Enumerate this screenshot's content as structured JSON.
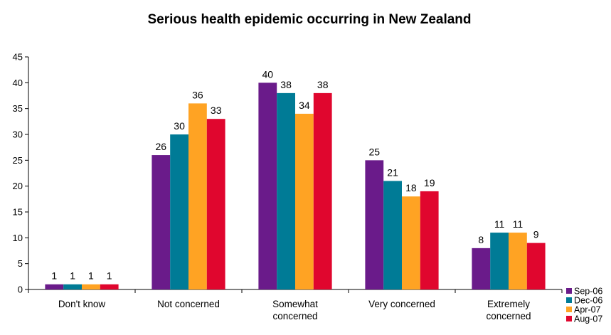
{
  "chart_data": {
    "type": "bar",
    "title": "Serious health epidemic occurring in New Zealand",
    "xlabel": "",
    "ylabel": "",
    "categories": [
      [
        "Don't know"
      ],
      [
        "Not concerned"
      ],
      [
        "Somewhat",
        "concerned"
      ],
      [
        "Very concerned"
      ],
      [
        "Extremely",
        "concerned"
      ]
    ],
    "series": [
      {
        "name": "Sep-06",
        "color": "#6a1b8a",
        "values": [
          1,
          26,
          40,
          25,
          8
        ]
      },
      {
        "name": "Dec-06",
        "color": "#007b96",
        "values": [
          1,
          30,
          38,
          21,
          11
        ]
      },
      {
        "name": "Apr-07",
        "color": "#ffa323",
        "values": [
          1,
          36,
          34,
          18,
          11
        ]
      },
      {
        "name": "Aug-07",
        "color": "#e0062e",
        "values": [
          1,
          33,
          38,
          19,
          9
        ]
      }
    ],
    "ylim": [
      0,
      45
    ],
    "yticks": [
      0,
      5,
      10,
      15,
      20,
      25,
      30,
      35,
      40,
      45
    ],
    "grid": false,
    "legend_position": "bottom-right"
  }
}
